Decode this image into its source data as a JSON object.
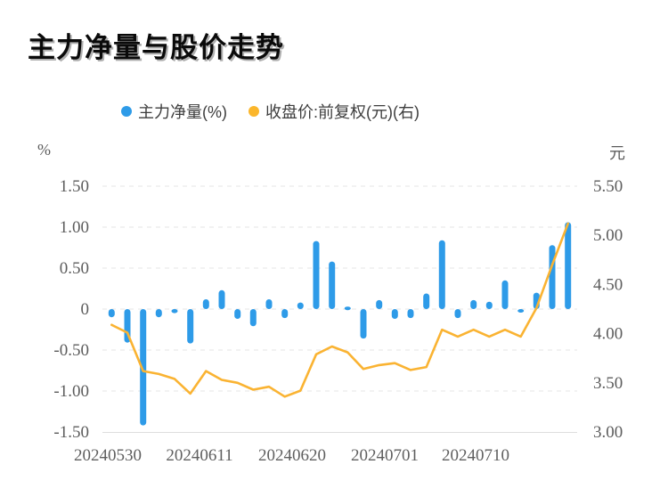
{
  "page": {
    "title": "主力净量与股价走势"
  },
  "legend": {
    "items": [
      {
        "label": "主力净量(%)",
        "color": "#2E9BE8",
        "series_type": "bar"
      },
      {
        "label": "收盘价:前复权(元)(右)",
        "color": "#FBB62B",
        "series_type": "line"
      }
    ]
  },
  "axes": {
    "unit_left": "%",
    "unit_right": "元",
    "left_ticks": [
      "1.50",
      "1.00",
      "0.50",
      "0",
      "-0.50",
      "-1.00",
      "-1.50"
    ],
    "right_ticks": [
      "5.50",
      "5.00",
      "4.50",
      "4.00",
      "3.50",
      "3.00"
    ],
    "x_ticks": [
      "20240530",
      "20240611",
      "20240620",
      "20240701",
      "20240710"
    ]
  },
  "chart_data": {
    "type": "bar+line",
    "title": "主力净量与股价走势",
    "x_tick_labels": [
      "20240530",
      "20240611",
      "20240620",
      "20240701",
      "20240710"
    ],
    "num_points": 30,
    "ylim_left": [
      -1.5,
      1.5
    ],
    "ylim_right": [
      3.0,
      5.5
    ],
    "grid": true,
    "grid_style": "dashed",
    "legend_position": "top",
    "series": [
      {
        "name": "主力净量(%)",
        "type": "bar",
        "axis": "left",
        "unit": "%",
        "color": "#2E9BE8",
        "values": [
          -0.1,
          -0.41,
          -1.42,
          -0.1,
          -0.05,
          -0.42,
          0.12,
          0.23,
          -0.12,
          -0.21,
          0.12,
          -0.11,
          0.08,
          0.83,
          0.58,
          0.03,
          -0.36,
          0.11,
          -0.12,
          -0.11,
          0.19,
          0.84,
          -0.11,
          0.11,
          0.09,
          0.35,
          -0.04,
          0.2,
          0.78,
          1.06
        ]
      },
      {
        "name": "收盘价:前复权(元)",
        "type": "line",
        "axis": "right",
        "unit": "元",
        "color": "#FAB332",
        "values": [
          4.09,
          4.01,
          3.62,
          3.59,
          3.54,
          3.39,
          3.62,
          3.53,
          3.5,
          3.43,
          3.46,
          3.36,
          3.42,
          3.79,
          3.87,
          3.81,
          3.64,
          3.68,
          3.7,
          3.63,
          3.66,
          4.04,
          3.97,
          4.04,
          3.97,
          4.04,
          3.97,
          4.26,
          4.7,
          5.12
        ]
      }
    ]
  }
}
